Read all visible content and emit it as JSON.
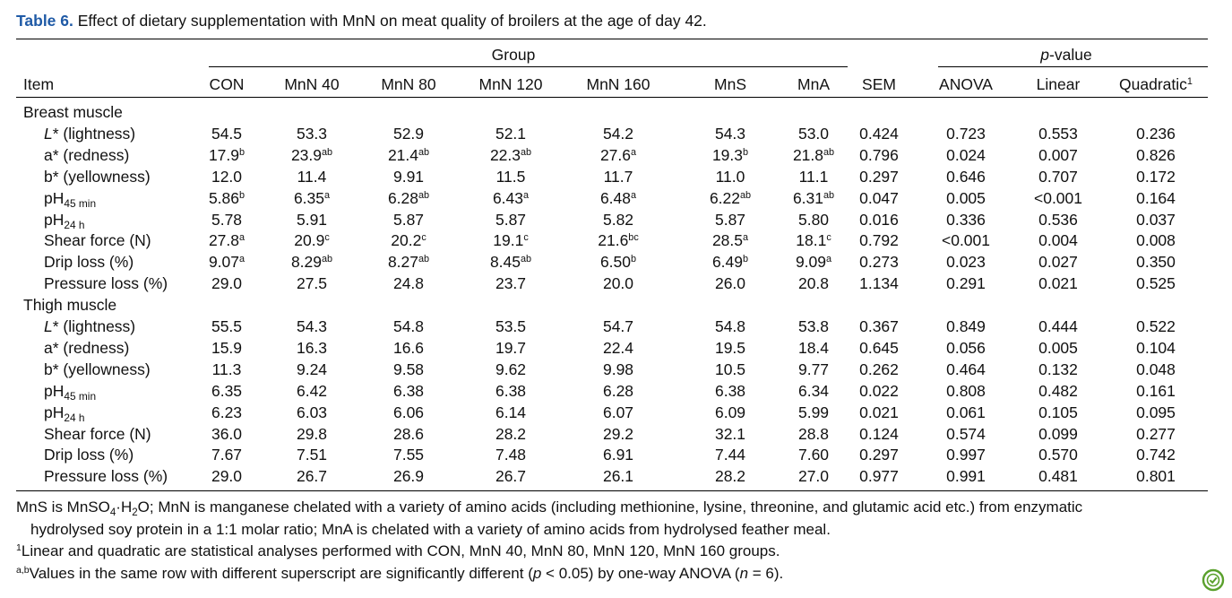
{
  "caption": {
    "label": "Table 6.",
    "text": "Effect of dietary supplementation with MnN on meat quality of broilers at the age of day 42."
  },
  "header": {
    "group_label": "Group",
    "pvalue_label_italic": "p",
    "pvalue_label_rest": "-value",
    "item": "Item",
    "groups": [
      "CON",
      "MnN 40",
      "MnN 80",
      "MnN 120",
      "MnN 160",
      "MnS",
      "MnA"
    ],
    "sem": "SEM",
    "pvalues": [
      "ANOVA",
      "Linear",
      "Quadratic"
    ],
    "quadratic_sup": "1"
  },
  "sections": [
    {
      "title": "Breast muscle",
      "rows": [
        {
          "label": "L* (lightness)",
          "label_italic": "L",
          "label_rest": "* (lightness)",
          "values": [
            [
              "54.5",
              ""
            ],
            [
              "53.3",
              ""
            ],
            [
              "52.9",
              ""
            ],
            [
              "52.1",
              ""
            ],
            [
              "54.2",
              ""
            ],
            [
              "54.3",
              ""
            ],
            [
              "53.0",
              ""
            ]
          ],
          "sem": "0.424",
          "p": [
            "0.723",
            "0.553",
            "0.236"
          ]
        },
        {
          "label": "a* (redness)",
          "values": [
            [
              "17.9",
              "b"
            ],
            [
              "23.9",
              "ab"
            ],
            [
              "21.4",
              "ab"
            ],
            [
              "22.3",
              "ab"
            ],
            [
              "27.6",
              "a"
            ],
            [
              "19.3",
              "b"
            ],
            [
              "21.8",
              "ab"
            ]
          ],
          "sem": "0.796",
          "p": [
            "0.024",
            "0.007",
            "0.826"
          ]
        },
        {
          "label": "b* (yellowness)",
          "values": [
            [
              "12.0",
              ""
            ],
            [
              "11.4",
              ""
            ],
            [
              "9.91",
              ""
            ],
            [
              "11.5",
              ""
            ],
            [
              "11.7",
              ""
            ],
            [
              "11.0",
              ""
            ],
            [
              "11.1",
              ""
            ]
          ],
          "sem": "0.297",
          "p": [
            "0.646",
            "0.707",
            "0.172"
          ]
        },
        {
          "label": "pH45 min",
          "ph_base": "pH",
          "ph_sub": "45 min",
          "values": [
            [
              "5.86",
              "b"
            ],
            [
              "6.35",
              "a"
            ],
            [
              "6.28",
              "ab"
            ],
            [
              "6.43",
              "a"
            ],
            [
              "6.48",
              "a"
            ],
            [
              "6.22",
              "ab"
            ],
            [
              "6.31",
              "ab"
            ]
          ],
          "sem": "0.047",
          "p": [
            "0.005",
            "<0.001",
            "0.164"
          ]
        },
        {
          "label": "pH24 h",
          "ph_base": "pH",
          "ph_sub": "24 h",
          "values": [
            [
              "5.78",
              ""
            ],
            [
              "5.91",
              ""
            ],
            [
              "5.87",
              ""
            ],
            [
              "5.87",
              ""
            ],
            [
              "5.82",
              ""
            ],
            [
              "5.87",
              ""
            ],
            [
              "5.80",
              ""
            ]
          ],
          "sem": "0.016",
          "p": [
            "0.336",
            "0.536",
            "0.037"
          ]
        },
        {
          "label": "Shear force (N)",
          "values": [
            [
              "27.8",
              "a"
            ],
            [
              "20.9",
              "c"
            ],
            [
              "20.2",
              "c"
            ],
            [
              "19.1",
              "c"
            ],
            [
              "21.6",
              "bc"
            ],
            [
              "28.5",
              "a"
            ],
            [
              "18.1",
              "c"
            ]
          ],
          "sem": "0.792",
          "p": [
            "<0.001",
            "0.004",
            "0.008"
          ]
        },
        {
          "label": "Drip loss (%)",
          "values": [
            [
              "9.07",
              "a"
            ],
            [
              "8.29",
              "ab"
            ],
            [
              "8.27",
              "ab"
            ],
            [
              "8.45",
              "ab"
            ],
            [
              "6.50",
              "b"
            ],
            [
              "6.49",
              "b"
            ],
            [
              "9.09",
              "a"
            ]
          ],
          "sem": "0.273",
          "p": [
            "0.023",
            "0.027",
            "0.350"
          ]
        },
        {
          "label": "Pressure loss (%)",
          "values": [
            [
              "29.0",
              ""
            ],
            [
              "27.5",
              ""
            ],
            [
              "24.8",
              ""
            ],
            [
              "23.7",
              ""
            ],
            [
              "20.0",
              ""
            ],
            [
              "26.0",
              ""
            ],
            [
              "20.8",
              ""
            ]
          ],
          "sem": "1.134",
          "p": [
            "0.291",
            "0.021",
            "0.525"
          ]
        }
      ]
    },
    {
      "title": "Thigh muscle",
      "rows": [
        {
          "label": "L* (lightness)",
          "label_italic": "L",
          "label_rest": "* (lightness)",
          "values": [
            [
              "55.5",
              ""
            ],
            [
              "54.3",
              ""
            ],
            [
              "54.8",
              ""
            ],
            [
              "53.5",
              ""
            ],
            [
              "54.7",
              ""
            ],
            [
              "54.8",
              ""
            ],
            [
              "53.8",
              ""
            ]
          ],
          "sem": "0.367",
          "p": [
            "0.849",
            "0.444",
            "0.522"
          ]
        },
        {
          "label": "a* (redness)",
          "values": [
            [
              "15.9",
              ""
            ],
            [
              "16.3",
              ""
            ],
            [
              "16.6",
              ""
            ],
            [
              "19.7",
              ""
            ],
            [
              "22.4",
              ""
            ],
            [
              "19.5",
              ""
            ],
            [
              "18.4",
              ""
            ]
          ],
          "sem": "0.645",
          "p": [
            "0.056",
            "0.005",
            "0.104"
          ]
        },
        {
          "label": "b* (yellowness)",
          "values": [
            [
              "11.3",
              ""
            ],
            [
              "9.24",
              ""
            ],
            [
              "9.58",
              ""
            ],
            [
              "9.62",
              ""
            ],
            [
              "9.98",
              ""
            ],
            [
              "10.5",
              ""
            ],
            [
              "9.77",
              ""
            ]
          ],
          "sem": "0.262",
          "p": [
            "0.464",
            "0.132",
            "0.048"
          ]
        },
        {
          "label": "pH45 min",
          "ph_base": "pH",
          "ph_sub": "45 min",
          "values": [
            [
              "6.35",
              ""
            ],
            [
              "6.42",
              ""
            ],
            [
              "6.38",
              ""
            ],
            [
              "6.38",
              ""
            ],
            [
              "6.28",
              ""
            ],
            [
              "6.38",
              ""
            ],
            [
              "6.34",
              ""
            ]
          ],
          "sem": "0.022",
          "p": [
            "0.808",
            "0.482",
            "0.161"
          ]
        },
        {
          "label": "pH24 h",
          "ph_base": "pH",
          "ph_sub": "24 h",
          "values": [
            [
              "6.23",
              ""
            ],
            [
              "6.03",
              ""
            ],
            [
              "6.06",
              ""
            ],
            [
              "6.14",
              ""
            ],
            [
              "6.07",
              ""
            ],
            [
              "6.09",
              ""
            ],
            [
              "5.99",
              ""
            ]
          ],
          "sem": "0.021",
          "p": [
            "0.061",
            "0.105",
            "0.095"
          ]
        },
        {
          "label": "Shear force (N)",
          "values": [
            [
              "36.0",
              ""
            ],
            [
              "29.8",
              ""
            ],
            [
              "28.6",
              ""
            ],
            [
              "28.2",
              ""
            ],
            [
              "29.2",
              ""
            ],
            [
              "32.1",
              ""
            ],
            [
              "28.8",
              ""
            ]
          ],
          "sem": "0.124",
          "p": [
            "0.574",
            "0.099",
            "0.277"
          ]
        },
        {
          "label": "Drip loss (%)",
          "values": [
            [
              "7.67",
              ""
            ],
            [
              "7.51",
              ""
            ],
            [
              "7.55",
              ""
            ],
            [
              "7.48",
              ""
            ],
            [
              "6.91",
              ""
            ],
            [
              "7.44",
              ""
            ],
            [
              "7.60",
              ""
            ]
          ],
          "sem": "0.297",
          "p": [
            "0.997",
            "0.570",
            "0.742"
          ]
        },
        {
          "label": "Pressure loss (%)",
          "values": [
            [
              "29.0",
              ""
            ],
            [
              "26.7",
              ""
            ],
            [
              "26.9",
              ""
            ],
            [
              "26.7",
              ""
            ],
            [
              "26.1",
              ""
            ],
            [
              "28.2",
              ""
            ],
            [
              "27.0",
              ""
            ]
          ],
          "sem": "0.977",
          "p": [
            "0.991",
            "0.481",
            "0.801"
          ]
        }
      ]
    }
  ],
  "footnotes": {
    "mns_a": "MnS is MnSO",
    "mns_sub1": "4",
    "mns_b": "·H",
    "mns_sub2": "2",
    "mns_c": "O; MnN is manganese chelated with a variety of amino acids (including methionine, lysine, threonine, and glutamic acid etc.) from enzymatic",
    "mns_line2": "hydrolysed soy protein in a 1:1 molar ratio; MnA is chelated with a variety of amino acids from hydrolysed feather meal.",
    "note1_sup": "1",
    "note1": "Linear and quadratic are statistical analyses performed with CON, MnN 40, MnN 80, MnN 120, MnN 160 groups.",
    "note2_sup": "a,b",
    "note2_a": "Values in the same row with different superscript are significantly different (",
    "note2_p": "p",
    "note2_b": " < 0.05) by one-way ANOVA (",
    "note2_n": "n",
    "note2_c": " = 6)."
  },
  "icons": {
    "corner": "crossref-check-icon",
    "corner_color": "#5aa02c"
  }
}
